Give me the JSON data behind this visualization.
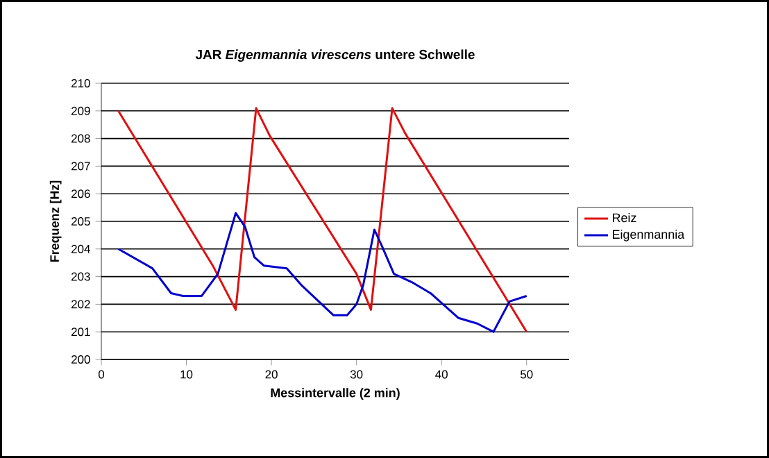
{
  "chart_data": {
    "type": "line",
    "title": "JAR *Eigenmannia virescens* untere Schwelle",
    "xlabel": "Messintervalle (2 min)",
    "ylabel": "Frequenz [Hz]",
    "xlim": [
      0,
      55
    ],
    "xticks": [
      0,
      10,
      20,
      30,
      40,
      50
    ],
    "ylim": [
      200,
      210
    ],
    "yticks": [
      200,
      201,
      202,
      203,
      204,
      205,
      206,
      207,
      208,
      209,
      210
    ],
    "grid": "y",
    "legend": "right",
    "marker": "none",
    "line_style": "solid",
    "series": [
      {
        "name": "Reiz",
        "color": "#e01010",
        "x": [
          2,
          13.1,
          15.8,
          18.2,
          19.8,
          30.0,
          31.7,
          34.2,
          35.7,
          50.0
        ],
        "values": [
          209,
          203.4,
          201.8,
          209.1,
          208.1,
          203.1,
          201.8,
          209.1,
          208.2,
          201.0
        ]
      },
      {
        "name": "Eigenmannia",
        "color": "#0000cc",
        "x": [
          2,
          6.0,
          8.2,
          9.6,
          11.8,
          13.7,
          15.8,
          16.9,
          18.0,
          19.1,
          21.8,
          23.5,
          27.3,
          28.9,
          30.0,
          30.8,
          32.1,
          33.0,
          34.4,
          36.5,
          38.7,
          42.0,
          44.2,
          46.1,
          48.0,
          50.0
        ],
        "values": [
          204,
          203.3,
          202.4,
          202.3,
          202.3,
          203.1,
          205.3,
          204.8,
          203.7,
          203.4,
          203.3,
          202.7,
          201.6,
          201.6,
          202.0,
          202.7,
          204.7,
          204.1,
          203.1,
          202.8,
          202.4,
          201.5,
          201.3,
          201.0,
          202.1,
          202.3
        ]
      }
    ]
  }
}
